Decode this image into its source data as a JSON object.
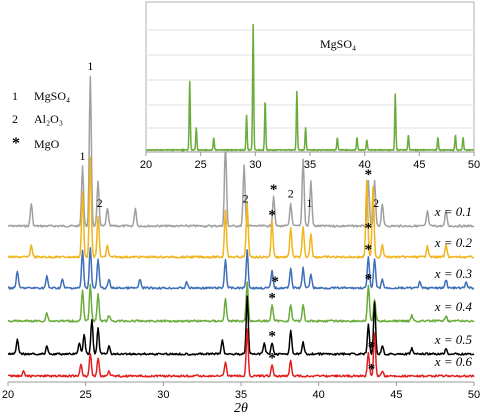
{
  "chart_data": [
    {
      "type": "line",
      "title": "",
      "xlabel": "2θ",
      "ylabel": "",
      "xlim": [
        20,
        50
      ],
      "xticks": [
        "20",
        "25",
        "30",
        "35",
        "40",
        "45",
        "50"
      ],
      "grid": false,
      "series": [
        {
          "name": "x = 0.1",
          "color": "#a0a0a0",
          "peaks": [
            [
              21.5,
              0.15
            ],
            [
              24.8,
              0.4
            ],
            [
              25.3,
              1.0
            ],
            [
              25.8,
              0.3
            ],
            [
              26.4,
              0.12
            ],
            [
              28.2,
              0.12
            ],
            [
              34.0,
              0.55
            ],
            [
              35.2,
              0.4
            ],
            [
              37.1,
              0.2
            ],
            [
              38.2,
              0.15
            ],
            [
              39.0,
              0.45
            ],
            [
              39.5,
              0.3
            ],
            [
              43.2,
              0.3
            ],
            [
              43.6,
              0.3
            ],
            [
              44.1,
              0.15
            ],
            [
              47.0,
              0.1
            ],
            [
              48.2,
              0.1
            ]
          ]
        },
        {
          "name": "x = 0.2",
          "color": "#f0b41c",
          "peaks": [
            [
              21.5,
              0.1
            ],
            [
              24.8,
              0.55
            ],
            [
              25.3,
              0.85
            ],
            [
              25.8,
              0.35
            ],
            [
              26.4,
              0.1
            ],
            [
              34.0,
              0.4
            ],
            [
              35.4,
              0.45
            ],
            [
              37.0,
              0.3
            ],
            [
              38.2,
              0.25
            ],
            [
              39.0,
              0.25
            ],
            [
              39.5,
              0.2
            ],
            [
              43.1,
              0.65
            ],
            [
              43.5,
              0.6
            ],
            [
              44.1,
              0.1
            ],
            [
              47.0,
              0.1
            ],
            [
              48.2,
              0.1
            ]
          ]
        },
        {
          "name": "x = 0.3",
          "color": "#3e6fb8",
          "peaks": [
            [
              20.6,
              0.3
            ],
            [
              22.5,
              0.2
            ],
            [
              23.5,
              0.15
            ],
            [
              24.8,
              0.65
            ],
            [
              25.3,
              0.7
            ],
            [
              25.8,
              0.5
            ],
            [
              26.5,
              0.15
            ],
            [
              28.5,
              0.15
            ],
            [
              31.5,
              0.1
            ],
            [
              34.0,
              0.5
            ],
            [
              35.4,
              0.65
            ],
            [
              37.0,
              0.3
            ],
            [
              38.2,
              0.35
            ],
            [
              39.0,
              0.35
            ],
            [
              39.5,
              0.25
            ],
            [
              43.2,
              0.55
            ],
            [
              43.6,
              0.5
            ],
            [
              44.1,
              0.15
            ],
            [
              46.5,
              0.1
            ],
            [
              48.2,
              0.15
            ],
            [
              49.5,
              0.1
            ]
          ]
        },
        {
          "name": "x = 0.4",
          "color": "#6aac3c",
          "peaks": [
            [
              22.5,
              0.15
            ],
            [
              24.8,
              0.55
            ],
            [
              25.3,
              0.65
            ],
            [
              25.8,
              0.5
            ],
            [
              26.5,
              0.1
            ],
            [
              34.0,
              0.4
            ],
            [
              35.4,
              0.7
            ],
            [
              37.0,
              0.3
            ],
            [
              38.2,
              0.3
            ],
            [
              39.0,
              0.3
            ],
            [
              43.2,
              0.65
            ],
            [
              43.6,
              0.4
            ],
            [
              46.0,
              0.1
            ],
            [
              48.2,
              0.1
            ]
          ]
        },
        {
          "name": "x = 0.5",
          "color": "#000000",
          "peaks": [
            [
              20.6,
              0.25
            ],
            [
              22.5,
              0.15
            ],
            [
              24.6,
              0.2
            ],
            [
              24.9,
              0.35
            ],
            [
              25.4,
              0.6
            ],
            [
              25.8,
              0.45
            ],
            [
              26.5,
              0.15
            ],
            [
              33.8,
              0.25
            ],
            [
              35.4,
              1.0
            ],
            [
              36.5,
              0.2
            ],
            [
              37.0,
              0.2
            ],
            [
              38.2,
              0.4
            ],
            [
              39.0,
              0.2
            ],
            [
              43.2,
              0.5
            ],
            [
              43.6,
              0.9
            ],
            [
              44.1,
              0.15
            ],
            [
              46.0,
              0.1
            ],
            [
              48.2,
              0.1
            ]
          ]
        },
        {
          "name": "x = 0.6",
          "color": "#e02020",
          "peaks": [
            [
              21.0,
              0.1
            ],
            [
              24.7,
              0.25
            ],
            [
              25.3,
              0.5
            ],
            [
              25.8,
              0.4
            ],
            [
              26.5,
              0.1
            ],
            [
              34.0,
              0.3
            ],
            [
              35.4,
              1.0
            ],
            [
              37.0,
              0.25
            ],
            [
              38.2,
              0.35
            ],
            [
              43.2,
              0.5
            ],
            [
              43.6,
              0.95
            ],
            [
              44.1,
              0.1
            ]
          ]
        }
      ],
      "annotations": [
        {
          "text": "1",
          "x": 25.3,
          "row": "x = 0.1"
        },
        {
          "text": "1",
          "x": 24.8,
          "row": "x = 0.1"
        },
        {
          "text": "2",
          "x": 25.9,
          "row": "x = 0.1"
        },
        {
          "text": "1",
          "x": 34.0,
          "row": "x = 0.1"
        },
        {
          "text": "2",
          "x": 35.3,
          "row": "x = 0.1"
        },
        {
          "text": "*",
          "x": 37.1,
          "row": "x = 0.1"
        },
        {
          "text": "2",
          "x": 38.2,
          "row": "x = 0.1"
        },
        {
          "text": "1",
          "x": 39.4,
          "row": "x = 0.1"
        },
        {
          "text": "*",
          "x": 43.2,
          "row": "x = 0.1"
        },
        {
          "text": "2",
          "x": 43.7,
          "row": "x = 0.1"
        },
        {
          "text": "*",
          "x": 37.0,
          "row": "x = 0.2"
        },
        {
          "text": "*",
          "x": 43.2,
          "row": "x = 0.2"
        },
        {
          "text": "*",
          "x": 37.2,
          "row": "x = 0.3"
        },
        {
          "text": "*",
          "x": 43.2,
          "row": "x = 0.3"
        },
        {
          "text": "*",
          "x": 37.0,
          "row": "x = 0.4"
        },
        {
          "text": "*",
          "x": 43.2,
          "row": "x = 0.4"
        },
        {
          "text": "*",
          "x": 37.0,
          "row": "x = 0.5"
        },
        {
          "text": "*",
          "x": 43.4,
          "row": "x = 0.5"
        },
        {
          "text": "*",
          "x": 37.0,
          "row": "x = 0.6"
        },
        {
          "text": "*",
          "x": 43.4,
          "row": "x = 0.6"
        }
      ],
      "legend": [
        {
          "symbol": "1",
          "label": "MgSO₄"
        },
        {
          "symbol": "2",
          "label": "Al₂O₃"
        },
        {
          "symbol": "*",
          "label": "MgO"
        }
      ]
    },
    {
      "type": "line",
      "title": "",
      "label": "MgSO₄",
      "xlim": [
        20,
        50
      ],
      "xticks": [
        "20",
        "25",
        "30",
        "35",
        "40",
        "45",
        "50"
      ],
      "grid": true,
      "series": [
        {
          "name": "MgSO₄",
          "color": "#6aac3c",
          "peaks": [
            [
              24.0,
              0.55
            ],
            [
              24.6,
              0.18
            ],
            [
              26.2,
              0.1
            ],
            [
              29.2,
              0.28
            ],
            [
              29.8,
              1.0
            ],
            [
              30.9,
              0.4
            ],
            [
              33.8,
              0.47
            ],
            [
              34.6,
              0.18
            ],
            [
              37.5,
              0.1
            ],
            [
              39.3,
              0.1
            ],
            [
              40.2,
              0.08
            ],
            [
              42.8,
              0.45
            ],
            [
              44.0,
              0.12
            ],
            [
              46.7,
              0.1
            ],
            [
              48.3,
              0.12
            ],
            [
              49.0,
              0.1
            ]
          ]
        }
      ]
    }
  ]
}
